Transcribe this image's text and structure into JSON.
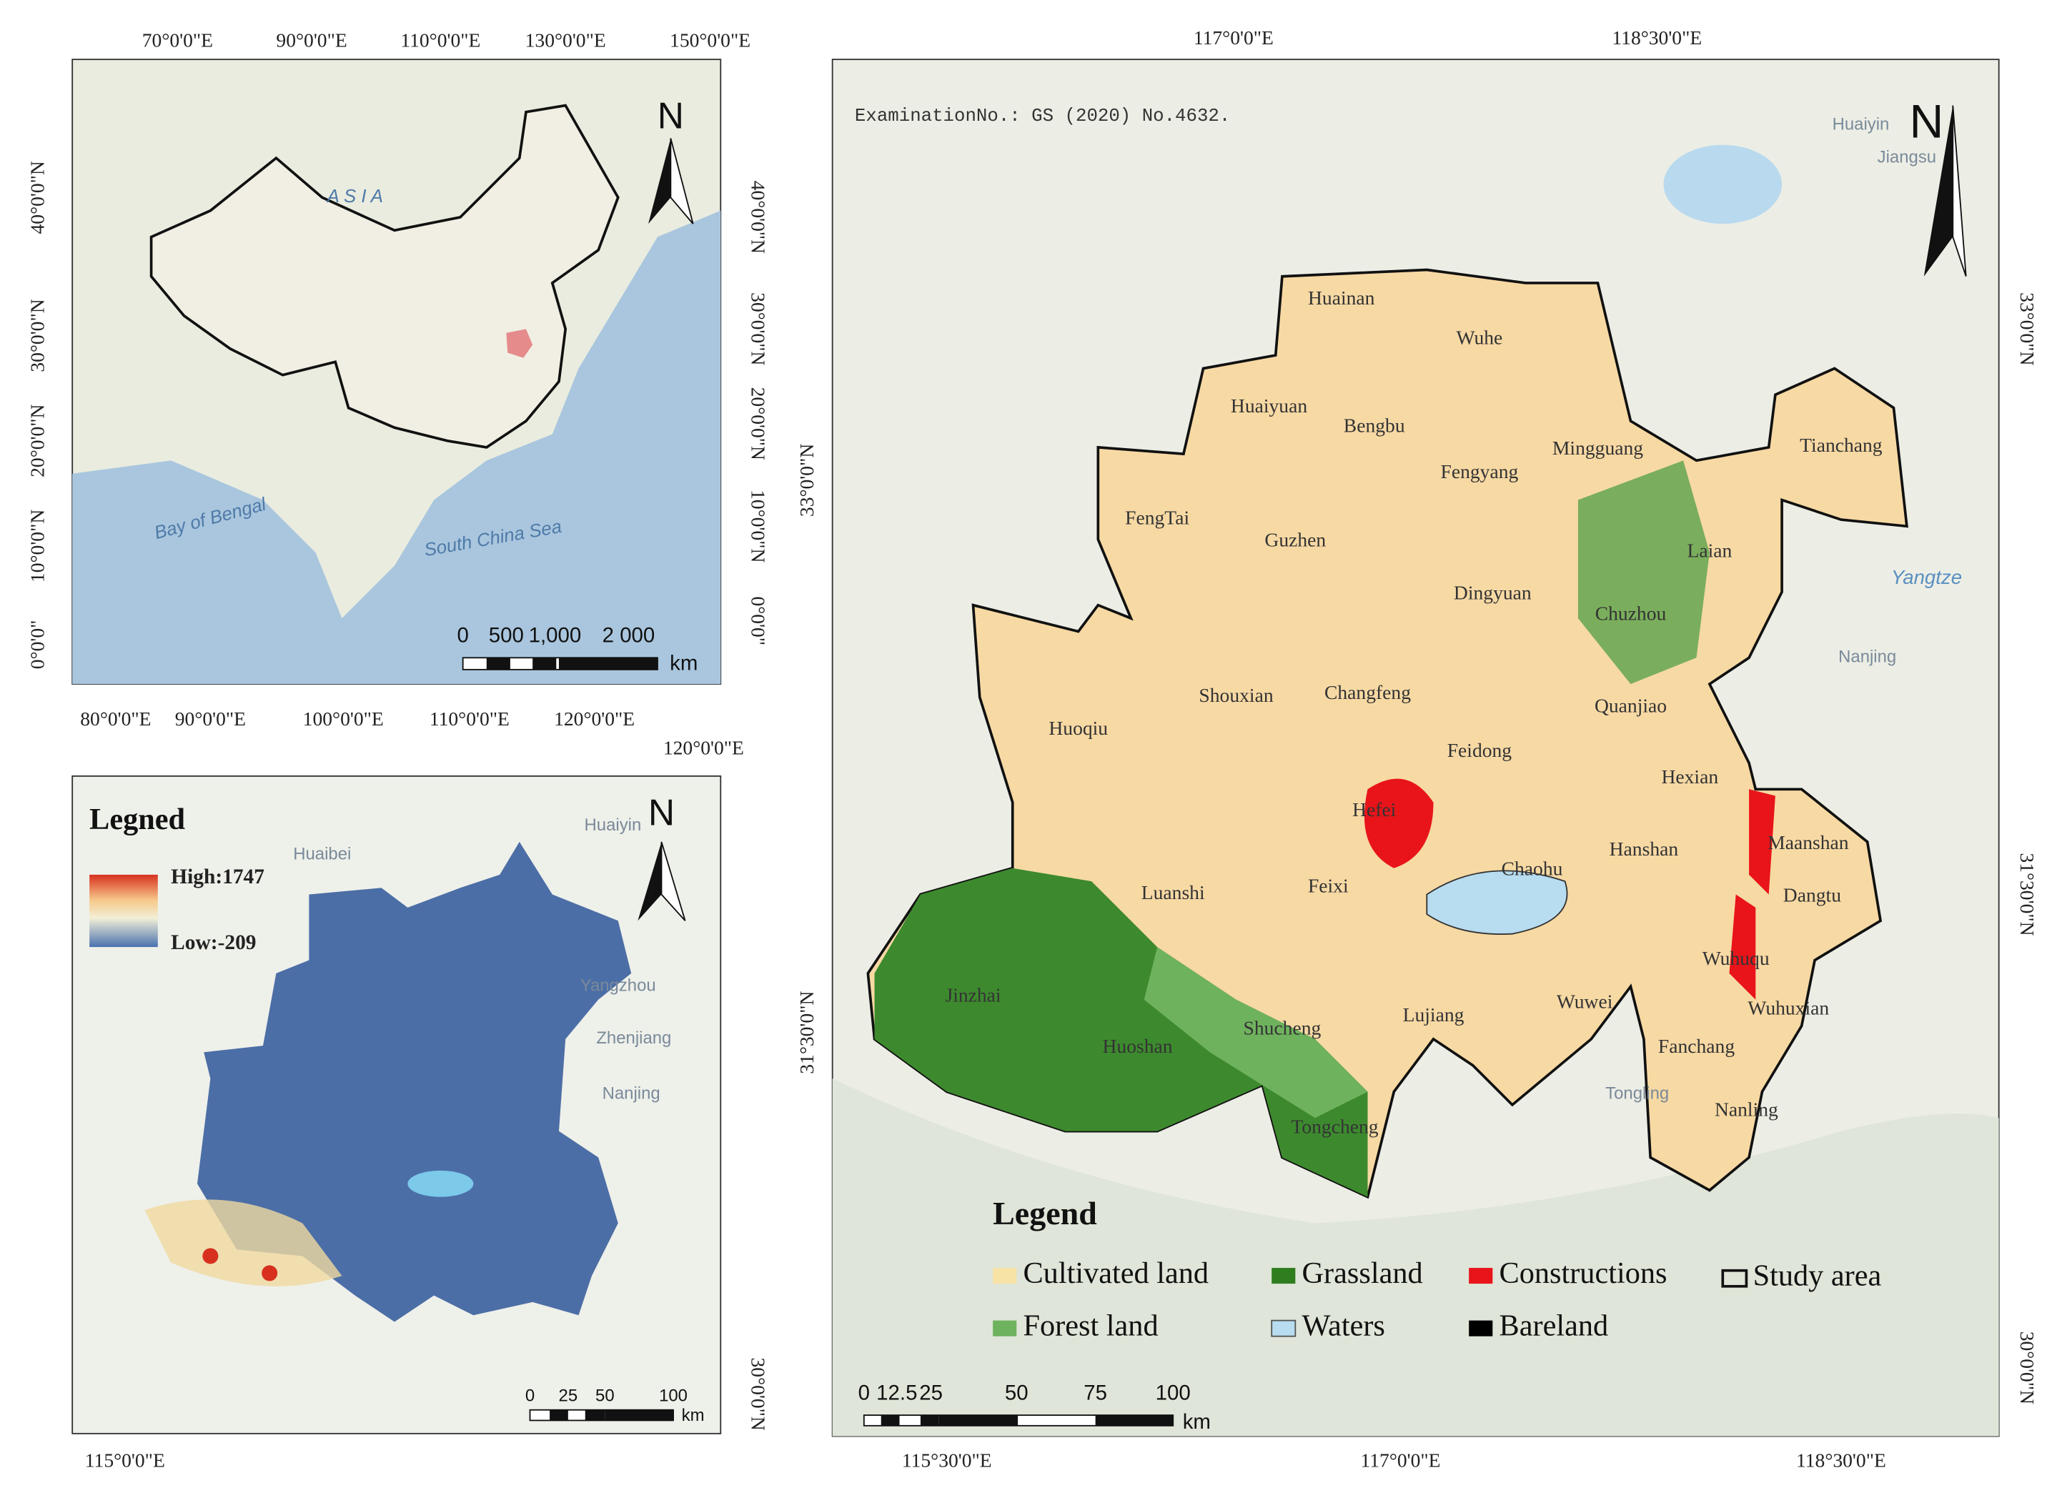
{
  "inset_map": {
    "top_ticks": [
      "70°0'0\"E",
      "90°0'0\"E",
      "110°0'0\"E",
      "130°0'0\"E",
      "150°0'0\"E"
    ],
    "bottom_ticks": [
      "80°0'0\"E",
      "90°0'0\"E",
      "100°0'0\"E",
      "110°0'0\"E",
      "120°0'0\"E"
    ],
    "left_ticks": [
      "40°0'0\"N",
      "30°0'0\"N",
      "20°0'0\"N",
      "10°0'0\"N",
      "0°0'0\""
    ],
    "right_ticks": [
      "40°0'0\"N",
      "30°0'0\"N",
      "20°0'0\"N",
      "10°0'0\"N",
      "0°0'0\""
    ],
    "labels": [
      "A S I A",
      "Bay of Bengal",
      "South China Sea"
    ],
    "north": "N",
    "scale": [
      "0",
      "500",
      "1,000",
      "2 000"
    ],
    "scale_unit": "km"
  },
  "dem_map": {
    "top_ticks": [
      "120°0'0\"E"
    ],
    "bottom_ticks": [
      "115°0'0\"E"
    ],
    "right_ticks": [
      "30°0'0\"N"
    ],
    "legend": {
      "title": "Legned",
      "high": "High:1747",
      "low": "Low:-209"
    },
    "labels": [
      "Huaibei",
      "Huaiyin",
      "Yangzhou",
      "Zhenjiang",
      "Nanjing"
    ],
    "north": "N",
    "scale": [
      "0",
      "25",
      "50",
      "100"
    ],
    "scale_unit": "km"
  },
  "main_map": {
    "top_ticks": [
      "117°0'0\"E",
      "118°30'0\"E"
    ],
    "bottom_ticks": [
      "115°30'0\"E",
      "117°0'0\"E",
      "118°30'0\"E"
    ],
    "left_ticks": [
      "33°0'0\"N",
      "31°30'0\"N"
    ],
    "right_ticks": [
      "33°0'0\"N",
      "31°30'0\"N",
      "30°0'0\"N"
    ],
    "note": "ExaminationNo.: GS (2020) No.4632.",
    "north": "N",
    "counties": [
      "Huainan",
      "Wuhe",
      "Huaiyuan",
      "Bengbu",
      "Mingguang",
      "Tianchang",
      "Fengyang",
      "FengTai",
      "Guzhen",
      "Laian",
      "Dingyuan",
      "Chuzhou",
      "Shouxian",
      "Changfeng",
      "Quanjiao",
      "Huoqiu",
      "Feidong",
      "Hexian",
      "Hefei",
      "Maanshan",
      "Chaohu",
      "Hanshan",
      "Luanshi",
      "Feixi",
      "Dangtu",
      "Wuhuqu",
      "Jinzhai",
      "Wuhuxian",
      "Huoshan",
      "Shucheng",
      "Lujiang",
      "Wuwei",
      "Fanchang",
      "Tongcheng",
      "Nanling"
    ],
    "background_labels": [
      "Huaiyin",
      "Jiangsu",
      "Yangtze",
      "Nanjing",
      "Tongling"
    ],
    "legend": {
      "title": "Legend",
      "items": [
        {
          "label": "Cultivated land",
          "color": "#f7e3a6"
        },
        {
          "label": "Grassland",
          "color": "#2e7d1e"
        },
        {
          "label": "Constructions",
          "color": "#e8141a"
        },
        {
          "label": "Study area",
          "color": "none"
        },
        {
          "label": "Forest land",
          "color": "#6fb25e"
        },
        {
          "label": "Waters",
          "color": "#b8dcf0"
        },
        {
          "label": "Bareland",
          "color": "#000000"
        }
      ]
    },
    "scale": [
      "0",
      "12.5",
      "25",
      "50",
      "75",
      "100"
    ],
    "scale_unit": "km"
  }
}
